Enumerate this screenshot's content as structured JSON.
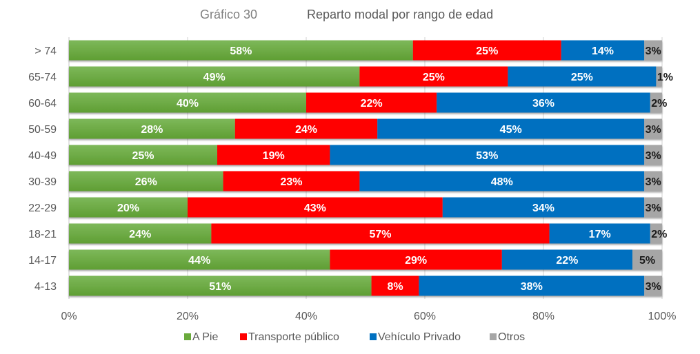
{
  "chart_data": {
    "type": "bar",
    "orientation": "horizontal",
    "stacked": "percent",
    "title_prefix": "Gráfico 30",
    "title": "Reparto modal por rango de edad",
    "xlabel": "",
    "ylabel": "",
    "xlim": [
      0,
      100
    ],
    "x_ticks": [
      "0%",
      "20%",
      "40%",
      "60%",
      "80%",
      "100%"
    ],
    "grid": "vertical",
    "legend_position": "bottom",
    "categories": [
      "> 74",
      "65-74",
      "60-64",
      "50-59",
      "40-49",
      "30-39",
      "22-29",
      "18-21",
      "14-17",
      "4-13"
    ],
    "series": [
      {
        "name": "A Pie",
        "color": "#6aaa3c",
        "label_color": "#ffffff",
        "values": [
          58,
          49,
          40,
          28,
          25,
          26,
          20,
          24,
          44,
          51
        ]
      },
      {
        "name": "Transporte público",
        "color": "#ff0000",
        "label_color": "#ffffff",
        "values": [
          25,
          25,
          22,
          24,
          19,
          23,
          43,
          57,
          29,
          8
        ]
      },
      {
        "name": "Vehículo Privado",
        "color": "#0070c0",
        "label_color": "#ffffff",
        "values": [
          14,
          25,
          36,
          45,
          53,
          48,
          34,
          17,
          22,
          38
        ]
      },
      {
        "name": "Otros",
        "color": "#a6a6a6",
        "label_color": "#1a1a1a",
        "values": [
          3,
          1,
          2,
          3,
          3,
          3,
          3,
          2,
          5,
          3
        ]
      }
    ],
    "value_suffix": "%"
  }
}
